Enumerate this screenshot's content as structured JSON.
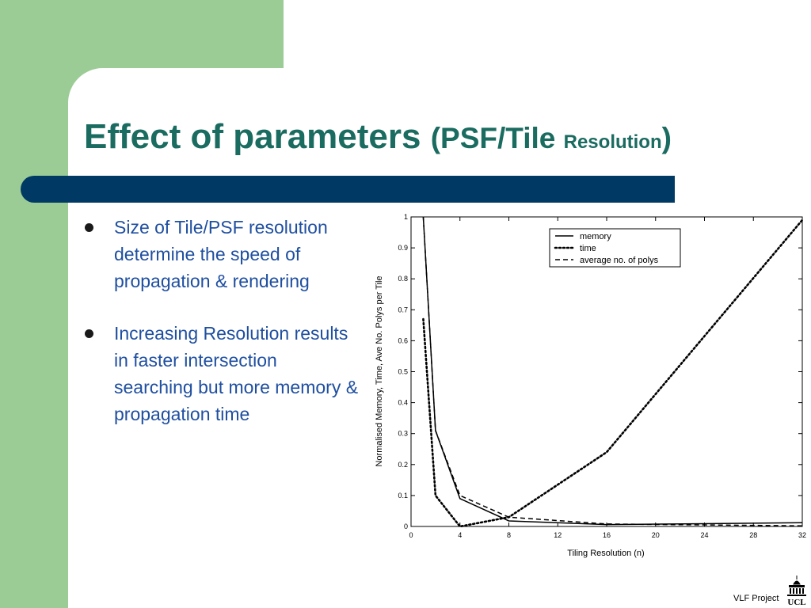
{
  "slide": {
    "title_main": "Effect of parameters ",
    "title_paren_open": "(PSF/Tile ",
    "title_resolution": "Resolution",
    "title_paren_close": ")",
    "bullets": [
      "Size of Tile/PSF resolution determine the speed of propagation & rendering",
      "Increasing Resolution results in faster intersection searching but more memory & propagation time"
    ],
    "footer": "VLF Project",
    "logo_text": "UCL"
  },
  "colors": {
    "green": "#9ccc95",
    "navy": "#003a64",
    "title": "#1a6b60",
    "bullet_text": "#1f4fa0"
  },
  "chart_data": {
    "type": "line",
    "xlabel": "Tiling Resolution (n)",
    "ylabel": "Normalised Memory, Time, Ave No. Polys per Tile",
    "xlim": [
      0,
      32
    ],
    "ylim": [
      0,
      1
    ],
    "xticks": [
      0,
      4,
      8,
      12,
      16,
      20,
      24,
      28,
      32
    ],
    "yticks": [
      0,
      0.1,
      0.2,
      0.3,
      0.4,
      0.5,
      0.6,
      0.7,
      0.8,
      0.9,
      1
    ],
    "legend_position": "top-right",
    "series": [
      {
        "name": "memory",
        "style": "solid",
        "x": [
          1,
          2,
          4,
          8,
          16,
          32
        ],
        "y": [
          1.0,
          0.31,
          0.09,
          0.018,
          0.006,
          0.012
        ]
      },
      {
        "name": "time",
        "style": "dotted",
        "x": [
          1,
          2,
          4,
          8,
          16,
          32
        ],
        "y": [
          0.67,
          0.1,
          0.0,
          0.03,
          0.24,
          0.99
        ]
      },
      {
        "name": "average no. of polys",
        "style": "dashed",
        "x": [
          1,
          2,
          4,
          8,
          16,
          32
        ],
        "y": [
          1.0,
          0.31,
          0.1,
          0.03,
          0.008,
          0.002
        ]
      }
    ]
  }
}
